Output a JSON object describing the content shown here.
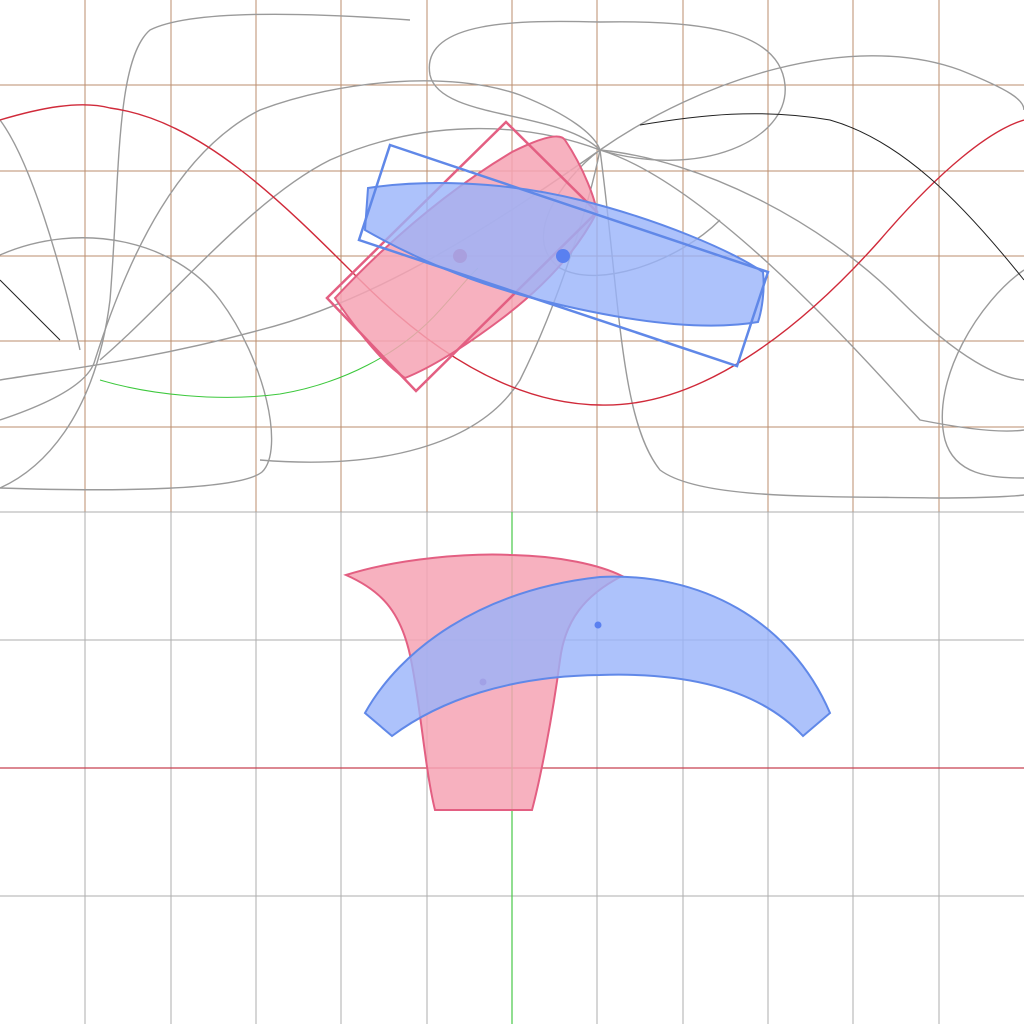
{
  "scene": {
    "shapes": [
      {
        "name": "pink-shape",
        "fill": "#F6A3B4",
        "stroke": "#E35F82"
      },
      {
        "name": "blue-shape",
        "fill": "#98B3FA",
        "stroke": "#6088E8"
      }
    ]
  },
  "colors": {
    "background": "#FFFFFF",
    "top_grid": "#B07A55",
    "bottom_grid": "#A0A0A0",
    "axis_x": "#C84050",
    "axis_y": "#48C848",
    "projection_curves": "#9A9A9A",
    "pink_fill": "#F6A3B4",
    "pink_stroke": "#E35F82",
    "blue_fill": "#98B3FA",
    "blue_stroke": "#6088E8",
    "red_curve": "#D02A3A",
    "green_curve": "#3CC83C",
    "dark_curve": "#202020"
  }
}
